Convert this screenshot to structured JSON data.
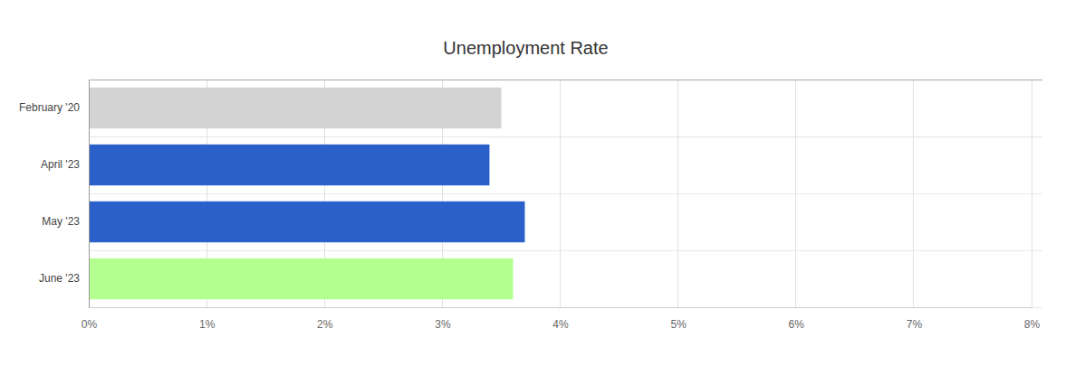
{
  "chart_data": {
    "type": "bar",
    "title": "Unemployment Rate",
    "orientation": "horizontal",
    "categories": [
      "February '20",
      "April '23",
      "May '23",
      "June '23"
    ],
    "values": [
      3.5,
      3.4,
      3.7,
      3.6
    ],
    "colors": [
      "#d3d3d3",
      "#2b5fca",
      "#2b5fca",
      "#b3ff8f"
    ],
    "xlim": [
      0,
      8
    ],
    "xticks": [
      {
        "value": 0,
        "label": "0%"
      },
      {
        "value": 1,
        "label": "1%"
      },
      {
        "value": 2,
        "label": "2%"
      },
      {
        "value": 3,
        "label": "3%"
      },
      {
        "value": 4,
        "label": "4%"
      },
      {
        "value": 5,
        "label": "5%"
      },
      {
        "value": 6,
        "label": "6%"
      },
      {
        "value": 7,
        "label": "7%"
      },
      {
        "value": 8,
        "label": "8%"
      }
    ],
    "grid": true
  }
}
